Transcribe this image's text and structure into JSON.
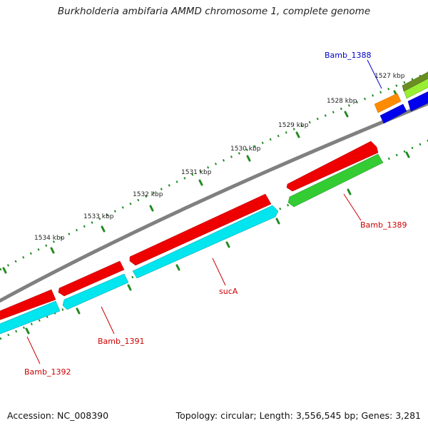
{
  "title": "Burkholderia ambifaria AMMD chromosome 1, complete genome",
  "footer": {
    "accession": "Accession: NC_008390",
    "summary": "Topology: circular; Length: 3,556,545 bp; Genes: 3,281"
  },
  "tick_labels": [
    "1527 kbp",
    "1528 kbp",
    "1529 kbp",
    "1530 kbp",
    "1531 kbp",
    "1532 kbp",
    "1533 kbp",
    "1534 kbp"
  ],
  "gene_labels": [
    {
      "id": "bamb1388",
      "text": "Bamb_1388",
      "color": "#0000cc"
    },
    {
      "id": "bamb1389",
      "text": "Bamb_1389",
      "color": "#cc0000"
    },
    {
      "id": "suca",
      "text": "sucA",
      "color": "#cc0000"
    },
    {
      "id": "bamb1391",
      "text": "Bamb_1391",
      "color": "#cc0000"
    },
    {
      "id": "bamb1392",
      "text": "Bamb_1392",
      "color": "#cc0000"
    }
  ],
  "colors": {
    "backbone": "#808080",
    "cds_forward": "#ee0000",
    "gene_reverse": "#00e5ee",
    "gene_green": "#33cc33",
    "gene_orange": "#ff8c00",
    "gene_blue": "#0000ee",
    "gene_lime": "#99ee33",
    "tick": "#228b22"
  }
}
